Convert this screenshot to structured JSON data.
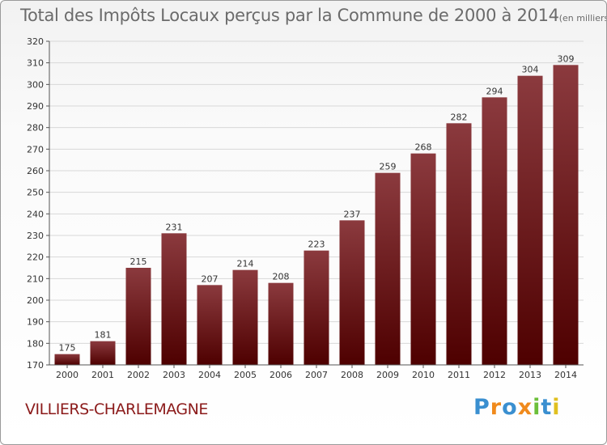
{
  "chart_data": {
    "type": "bar",
    "title": "Total des Impôts Locaux perçus par la Commune de 2000 à 2014",
    "title_unit": "(en milliers d'€)",
    "categories": [
      "2000",
      "2001",
      "2002",
      "2003",
      "2004",
      "2005",
      "2006",
      "2007",
      "2008",
      "2009",
      "2010",
      "2011",
      "2012",
      "2013",
      "2014"
    ],
    "values": [
      175,
      181,
      215,
      231,
      207,
      214,
      208,
      223,
      237,
      259,
      268,
      282,
      294,
      304,
      309
    ],
    "ylim": [
      170,
      320
    ],
    "yticks": [
      170,
      180,
      190,
      200,
      210,
      220,
      230,
      240,
      250,
      260,
      270,
      280,
      290,
      300,
      310,
      320
    ],
    "grid": true,
    "xlabel": "",
    "ylabel": "",
    "bar_color_top": "#8b3a3e",
    "bar_color_bottom": "#4e0000",
    "grid_color": "#d8d8d8"
  },
  "commune": "VILLIERS-CHARLEMAGNE",
  "logo": {
    "text": "Proxiti",
    "letters": [
      "P",
      "r",
      "o",
      "x",
      "i",
      "t",
      "i"
    ],
    "colors": [
      "#3a8fd0",
      "#f08a1c",
      "#3a8fd0",
      "#f08a1c",
      "#6cbf3a",
      "#3a8fd0",
      "#e0c020"
    ]
  }
}
